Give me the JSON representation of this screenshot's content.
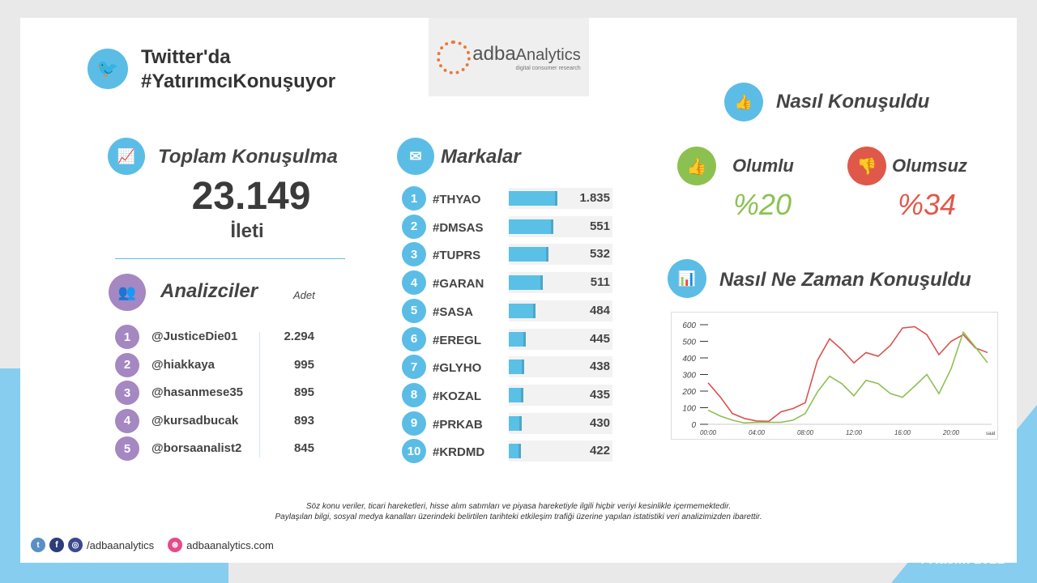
{
  "header": {
    "title_line1": "Twitter'da",
    "title_line2": "#YatırımcıKonuşuyor",
    "logo_text": "Analytics",
    "logo_brand": "adba",
    "logo_tagline": "digital consumer research"
  },
  "total": {
    "title": "Toplam Konuşulma",
    "value": "23.149",
    "unit": "İleti"
  },
  "analysts": {
    "title": "Analizciler",
    "count_header": "Adet",
    "items": [
      {
        "rank": "1",
        "name": "@JusticeDie01",
        "count": "2.294"
      },
      {
        "rank": "2",
        "name": "@hiakkaya",
        "count": "995"
      },
      {
        "rank": "3",
        "name": "@hasanmese35",
        "count": "895"
      },
      {
        "rank": "4",
        "name": "@kursadbucak",
        "count": "893"
      },
      {
        "rank": "5",
        "name": "@borsaanalist2",
        "count": "845"
      }
    ]
  },
  "brands": {
    "title": "Markalar",
    "items": [
      {
        "rank": "1",
        "name": "#THYAO",
        "count": "1.835",
        "value": 1835
      },
      {
        "rank": "2",
        "name": "#DMSAS",
        "count": "551",
        "value": 551
      },
      {
        "rank": "3",
        "name": "#TUPRS",
        "count": "532",
        "value": 532
      },
      {
        "rank": "4",
        "name": "#GARAN",
        "count": "511",
        "value": 511
      },
      {
        "rank": "5",
        "name": "#SASA",
        "count": "484",
        "value": 484
      },
      {
        "rank": "6",
        "name": "#EREGL",
        "count": "445",
        "value": 445
      },
      {
        "rank": "7",
        "name": "#GLYHO",
        "count": "438",
        "value": 438
      },
      {
        "rank": "8",
        "name": "#KOZAL",
        "count": "435",
        "value": 435
      },
      {
        "rank": "9",
        "name": "#PRKAB",
        "count": "430",
        "value": 430
      },
      {
        "rank": "10",
        "name": "#KRDMD",
        "count": "422",
        "value": 422
      }
    ]
  },
  "sentiment": {
    "title": "Nasıl Konuşuldu",
    "positive_label": "Olumlu",
    "positive_value": "%20",
    "negative_label": "Olumsuz",
    "negative_value": "%34",
    "positive_color": "#8cc152",
    "negative_color": "#e0584a"
  },
  "timeline": {
    "title": "Nasıl Ne Zaman Konuşuldu"
  },
  "chart_data": {
    "type": "line",
    "xlabel": "saat",
    "ylim": [
      0,
      600
    ],
    "yticks": [
      "600",
      "500",
      "400",
      "300",
      "200",
      "100",
      "0"
    ],
    "xticks": [
      "00:00",
      "04:00",
      "08:00",
      "12:00",
      "16:00",
      "20:00"
    ],
    "x": [
      0,
      1,
      2,
      3,
      4,
      5,
      6,
      7,
      8,
      9,
      10,
      11,
      12,
      13,
      14,
      15,
      16,
      17,
      18,
      19,
      20,
      21,
      22,
      23
    ],
    "series": [
      {
        "color": "#d9534f",
        "values": [
          250,
          165,
          65,
          35,
          20,
          18,
          75,
          95,
          130,
          385,
          515,
          450,
          370,
          432,
          410,
          475,
          580,
          588,
          540,
          420,
          500,
          540,
          460,
          432
        ]
      },
      {
        "color": "#8cc152",
        "values": [
          85,
          50,
          25,
          8,
          12,
          12,
          12,
          25,
          65,
          195,
          290,
          245,
          172,
          265,
          245,
          185,
          163,
          230,
          300,
          185,
          335,
          555,
          465,
          370
        ]
      }
    ]
  },
  "footer": {
    "disclaimer1": "Söz konu veriler, ticari hareketleri, hisse alım satımları ve piyasa hareketiyle ilgili hiçbir veriyi kesinlikle içermemektedir.",
    "disclaimer2": "Paylaşılan bilgi, sosyal medya kanalları üzerindeki belirtilen tarihteki etkileşim trafiği üzerine yapılan istatistiki veri analizimizden ibarettir.",
    "social_handle": "/adbaanalytics",
    "website": "adbaanalytics.com",
    "date": "4 Kasım 2021"
  }
}
